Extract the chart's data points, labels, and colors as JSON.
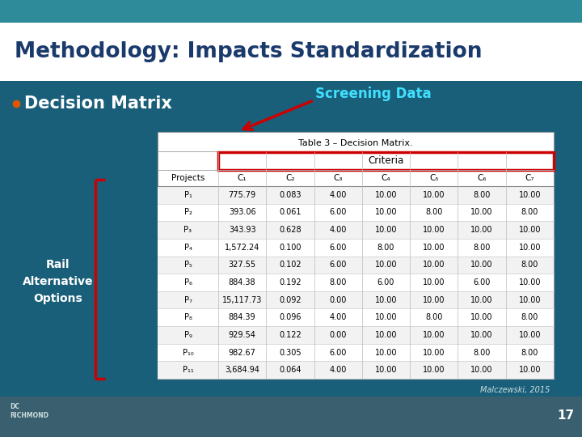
{
  "bg_top_color": "#2e8b9a",
  "bg_main_color": "#1a5f7a",
  "footer_color": "#3a6070",
  "title": "Methodology: Impacts Standardization",
  "title_color": "#1a3a6c",
  "bullet_text": "Decision Matrix",
  "screening_label": "Screening Data",
  "screening_color": "#40e0ff",
  "table_title": "Table 3 – Decision Matrix.",
  "rail_label": "Rail\nAlternative\nOptions",
  "citation": "Malczewski, 2015",
  "page_number": "17",
  "col_headers": [
    "Projects",
    "C₁",
    "C₂",
    "C₃",
    "C₄",
    "C₅",
    "C₆",
    "C₇"
  ],
  "rows": [
    [
      "P₁",
      "775.79",
      "0.083",
      "4.00",
      "10.00",
      "10.00",
      "8.00",
      "10.00"
    ],
    [
      "P₂",
      "393.06",
      "0.061",
      "6.00",
      "10.00",
      "8.00",
      "10.00",
      "8.00"
    ],
    [
      "P₃",
      "343.93",
      "0.628",
      "4.00",
      "10.00",
      "10.00",
      "10.00",
      "10.00"
    ],
    [
      "P₄",
      "1,572.24",
      "0.100",
      "6.00",
      "8.00",
      "10.00",
      "8.00",
      "10.00"
    ],
    [
      "P₅",
      "327.55",
      "0.102",
      "6.00",
      "10.00",
      "10.00",
      "10.00",
      "8.00"
    ],
    [
      "P₆",
      "884.38",
      "0.192",
      "8.00",
      "6.00",
      "10.00",
      "6.00",
      "10.00"
    ],
    [
      "P₇",
      "15,117.73",
      "0.092",
      "0.00",
      "10.00",
      "10.00",
      "10.00",
      "10.00"
    ],
    [
      "P₈",
      "884.39",
      "0.096",
      "4.00",
      "10.00",
      "8.00",
      "10.00",
      "8.00"
    ],
    [
      "P₉",
      "929.54",
      "0.122",
      "0.00",
      "10.00",
      "10.00",
      "10.00",
      "10.00"
    ],
    [
      "P₁₀",
      "982.67",
      "0.305",
      "6.00",
      "10.00",
      "10.00",
      "8.00",
      "8.00"
    ],
    [
      "P₁₁",
      "3,684.94",
      "0.064",
      "4.00",
      "10.00",
      "10.00",
      "10.00",
      "10.00"
    ]
  ]
}
